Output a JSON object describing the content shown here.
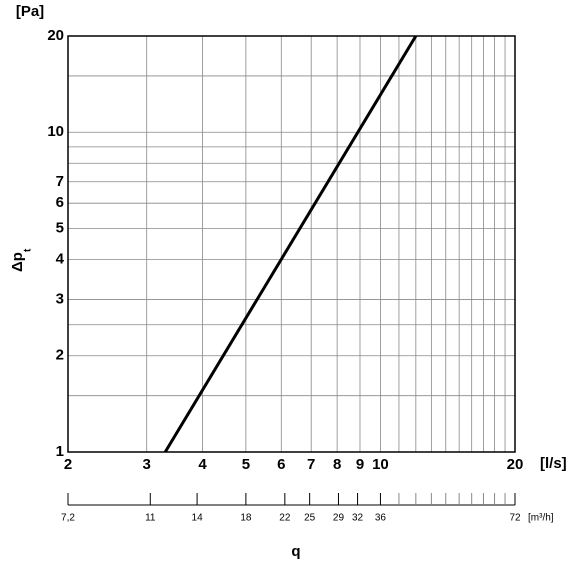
{
  "chart_data": {
    "type": "line",
    "x_log": true,
    "y_log": true,
    "grid": true,
    "y_unit": "[Pa]",
    "x_unit": "[l/s]",
    "x2_unit": "[m³/h]",
    "y_label": "Δp",
    "y_label_sub": "t",
    "x_label": "q",
    "xlim": [
      2,
      20
    ],
    "ylim": [
      1,
      20
    ],
    "xticks": [
      2,
      3,
      4,
      5,
      6,
      7,
      8,
      9,
      10,
      20
    ],
    "xminor": [
      11,
      12,
      13,
      14,
      15,
      16,
      17,
      18,
      19
    ],
    "yticks": [
      1,
      2,
      3,
      4,
      5,
      6,
      7,
      10,
      20
    ],
    "yminor": [
      1.5,
      2.5,
      8,
      9,
      15
    ],
    "x2lim": [
      7.2,
      72
    ],
    "x2ticks": [
      {
        "value": 7.2,
        "label": "7,2"
      },
      11,
      14,
      18,
      22,
      25,
      29,
      32,
      36,
      72
    ],
    "x2minor": [
      39.6,
      43.2,
      46.8,
      50.4,
      54,
      57.6,
      61.2,
      64.8,
      68.4
    ],
    "x": [
      3.3,
      12
    ],
    "series": [
      {
        "name": null,
        "color": "#000000",
        "values": [
          1,
          20
        ]
      }
    ]
  }
}
